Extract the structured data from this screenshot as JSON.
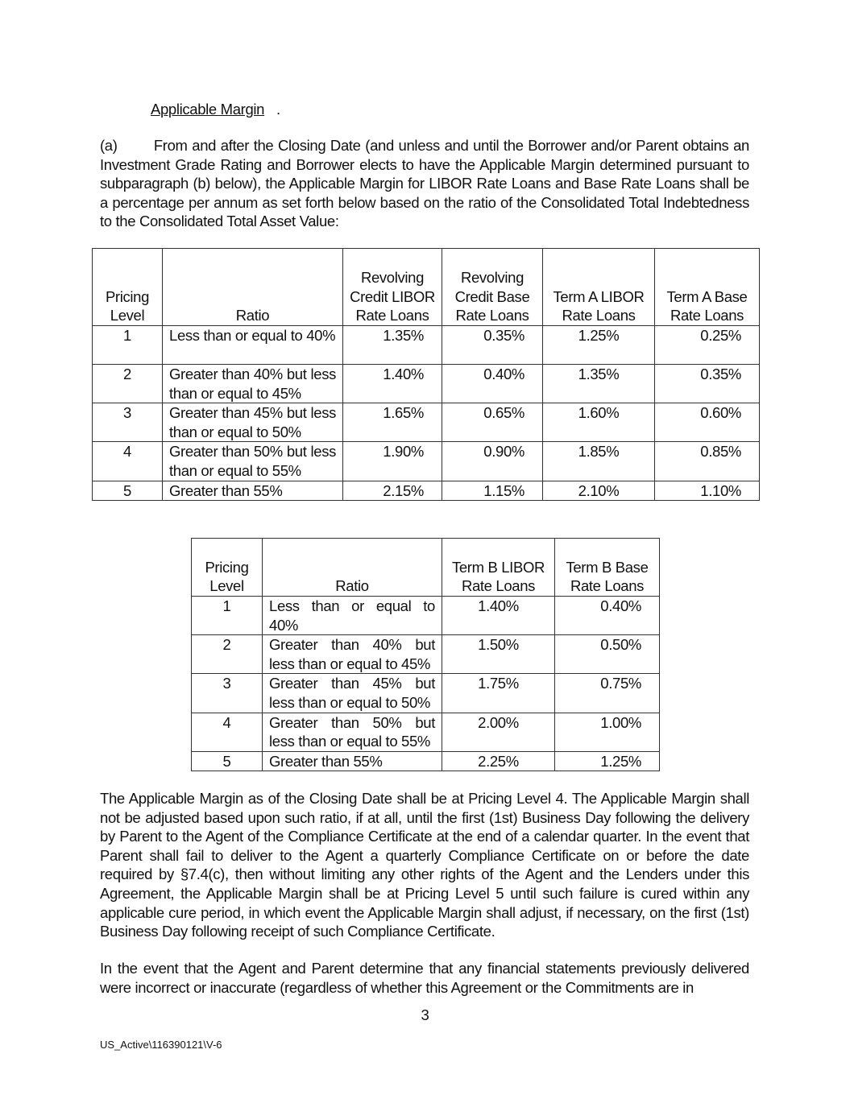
{
  "heading": "Applicable Margin",
  "heading_suffix": ".",
  "para_a": "(a)        From and after the Closing Date (and unless and until the Borrower and/or Parent obtains an Investment Grade Rating and Borrower elects to have the Applicable Margin determined pursuant to subparagraph (b) below), the Applicable Margin for LIBOR Rate Loans and Base Rate Loans shall be a percentage per annum as set forth below based on the ratio of the Consolidated Total Indebtedness to the Consolidated Total Asset Value:",
  "table1": {
    "headers": [
      "Pricing Level",
      "Ratio",
      "Revolving Credit LIBOR Rate Loans",
      "Revolving Credit Base Rate Loans",
      "Term A LIBOR Rate Loans",
      "Term A Base Rate Loans"
    ],
    "rows": [
      [
        "1",
        "Less than or equal to 40%",
        "1.35%",
        "0.35%",
        "1.25%",
        "0.25%"
      ],
      [
        "2",
        "Greater than 40% but less than or equal to 45%",
        "1.40%",
        "0.40%",
        "1.35%",
        "0.35%"
      ],
      [
        "3",
        "Greater than 45% but less than or equal to 50%",
        "1.65%",
        "0.65%",
        "1.60%",
        "0.60%"
      ],
      [
        "4",
        "Greater than 50% but less than or equal to 55%",
        "1.90%",
        "0.90%",
        "1.85%",
        "0.85%"
      ],
      [
        "5",
        "Greater than 55%",
        "2.15%",
        "1.15%",
        "2.10%",
        "1.10%"
      ]
    ]
  },
  "table2": {
    "headers": [
      "Pricing Level",
      "Ratio",
      "Term B LIBOR Rate Loans",
      "Term B Base Rate Loans"
    ],
    "rows": [
      [
        "1",
        "Less than or equal to 40%",
        "1.40%",
        "0.40%"
      ],
      [
        "2",
        "Greater than 40% but less than or equal to 45%",
        "1.50%",
        "0.50%"
      ],
      [
        "3",
        "Greater than 45% but less than or equal to 50%",
        "1.75%",
        "0.75%"
      ],
      [
        "4",
        "Greater than 50% but less than or equal to 55%",
        "2.00%",
        "1.00%"
      ],
      [
        "5",
        "Greater than 55%",
        "2.25%",
        "1.25%"
      ]
    ]
  },
  "para_b": "The Applicable Margin as of the Closing Date shall be at Pricing Level 4.  The Applicable Margin shall not be adjusted based upon such ratio, if at all, until the first (1st) Business Day following the delivery by Parent to the Agent of the Compliance Certificate at the end of a calendar quarter. In the event that Parent shall fail to deliver to the Agent a quarterly Compliance Certificate on or before the date required by §7.4(c), then without limiting any other rights of the Agent and the Lenders under this Agreement, the Applicable Margin shall be at Pricing Level 5 until such failure is cured within any applicable cure period, in which event the Applicable Margin shall adjust, if necessary, on the first (1st) Business Day following receipt of such Compliance Certificate.",
  "para_c": "In the event that the Agent and Parent determine that any financial statements previously delivered were incorrect or inaccurate (regardless of whether this Agreement or the Commitments are in",
  "page_number": "3",
  "footer_id": "US_Active\\116390121\\V-6"
}
